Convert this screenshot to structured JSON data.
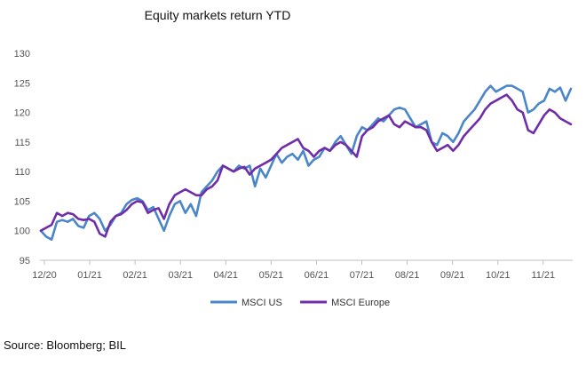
{
  "chart_data": {
    "type": "line",
    "title": "Equity markets return YTD",
    "xlabel": "",
    "ylabel": "",
    "ylim": [
      95,
      130
    ],
    "yticks": [
      95,
      100,
      105,
      110,
      115,
      120,
      125,
      130
    ],
    "xticks": [
      "12/20",
      "01/21",
      "02/21",
      "03/21",
      "04/21",
      "05/21",
      "06/21",
      "07/21",
      "08/21",
      "09/21",
      "10/21",
      "11/21"
    ],
    "grid": false,
    "legend": "bottom",
    "series": [
      {
        "name": "MSCI US",
        "color": "#4a86c8",
        "values": [
          100.0,
          99.0,
          98.5,
          101.5,
          101.8,
          101.5,
          102.0,
          100.8,
          100.5,
          102.5,
          103.0,
          102.0,
          100.0,
          101.0,
          102.5,
          103.0,
          104.5,
          105.2,
          105.5,
          105.0,
          103.5,
          104.0,
          102.0,
          100.0,
          102.5,
          104.5,
          105.0,
          103.0,
          104.5,
          102.5,
          106.5,
          107.5,
          108.5,
          110.0,
          111.0,
          110.5,
          110.0,
          111.0,
          110.5,
          111.0,
          107.5,
          110.5,
          109.0,
          111.0,
          113.0,
          111.5,
          112.5,
          113.0,
          112.0,
          113.5,
          111.0,
          112.0,
          112.5,
          114.0,
          113.5,
          115.0,
          116.0,
          114.5,
          113.0,
          116.0,
          117.5,
          117.0,
          118.0,
          119.0,
          118.5,
          119.5,
          120.5,
          120.8,
          120.5,
          119.0,
          117.5,
          118.0,
          118.5,
          115.0,
          114.5,
          116.5,
          116.0,
          115.0,
          116.5,
          118.5,
          119.5,
          120.5,
          122.0,
          123.5,
          124.5,
          123.5,
          124.0,
          124.5,
          124.5,
          124.0,
          123.5,
          120.0,
          120.5,
          121.5,
          122.0,
          124.0,
          123.5,
          124.2,
          122.0,
          124.0
        ]
      },
      {
        "name": "MSCI Europe",
        "color": "#6f2da8",
        "values": [
          100.0,
          100.5,
          101.0,
          103.0,
          102.5,
          103.0,
          102.8,
          102.0,
          101.8,
          102.0,
          101.5,
          99.5,
          99.0,
          101.5,
          102.5,
          102.8,
          103.5,
          104.5,
          105.0,
          104.8,
          103.0,
          103.5,
          103.8,
          102.0,
          104.5,
          106.0,
          106.5,
          107.0,
          106.5,
          106.0,
          106.0,
          107.0,
          107.5,
          108.5,
          111.0,
          110.5,
          110.0,
          110.5,
          110.8,
          109.5,
          110.5,
          111.0,
          111.5,
          112.0,
          113.0,
          114.0,
          114.5,
          115.0,
          115.5,
          114.0,
          113.5,
          112.5,
          113.5,
          114.0,
          113.5,
          114.5,
          115.0,
          114.5,
          113.5,
          112.5,
          116.0,
          117.0,
          117.5,
          118.5,
          119.0,
          119.5,
          118.0,
          117.5,
          118.5,
          118.0,
          117.5,
          117.5,
          117.0,
          115.0,
          113.5,
          114.0,
          114.5,
          113.5,
          114.5,
          116.0,
          117.0,
          118.0,
          119.0,
          120.5,
          121.5,
          122.0,
          122.5,
          123.0,
          122.0,
          120.5,
          120.0,
          117.0,
          116.5,
          118.0,
          119.5,
          120.5,
          120.0,
          119.0,
          118.5,
          118.0
        ]
      }
    ]
  },
  "source_note": "Source: Bloomberg; BIL"
}
